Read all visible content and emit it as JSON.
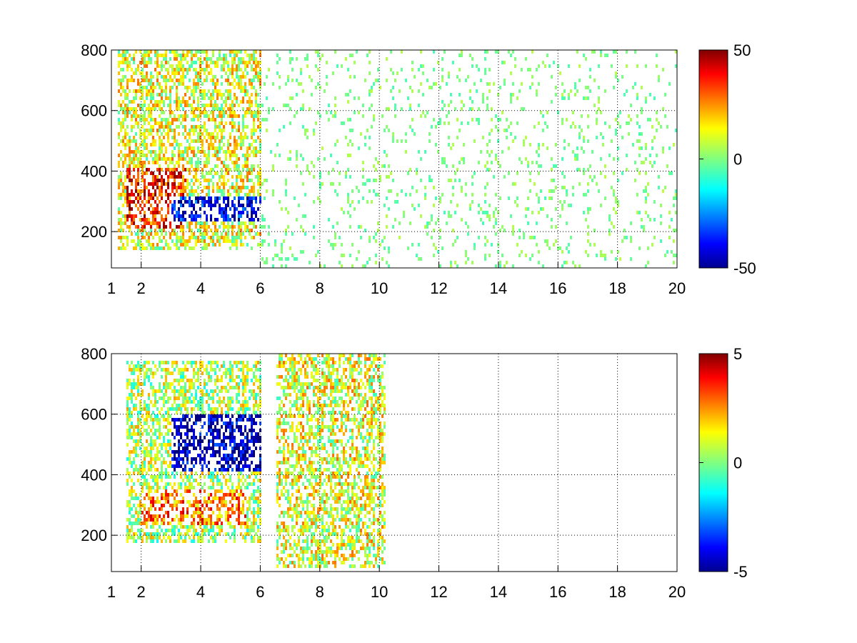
{
  "chart_data": [
    {
      "type": "heatmap",
      "title": "",
      "xlabel": "",
      "ylabel": "",
      "xlim": [
        1,
        20
      ],
      "ylim": [
        80,
        800
      ],
      "xticks": [
        1,
        2,
        4,
        6,
        8,
        10,
        12,
        14,
        16,
        18,
        20
      ],
      "xtick_labels": [
        "1",
        "2",
        "4",
        "6",
        "8",
        "10",
        "12",
        "14",
        "16",
        "18",
        "20"
      ],
      "yticks": [
        200,
        400,
        600,
        800
      ],
      "ytick_labels": [
        "200",
        "400",
        "600",
        "800"
      ],
      "grid": true,
      "colormap": "jet",
      "colorbar": {
        "range": [
          -50,
          50
        ],
        "ticks": [
          50,
          0,
          -50
        ],
        "tick_labels": [
          "50",
          "0",
          "-50"
        ]
      },
      "features": [
        {
          "description": "dense noisy region",
          "x_range": [
            1.2,
            6.0
          ],
          "y_range": [
            150,
            800
          ],
          "typical_value": 10
        },
        {
          "description": "positive band",
          "x_range": [
            1.5,
            3.5
          ],
          "y_range": [
            220,
            420
          ],
          "typical_value": 35
        },
        {
          "description": "negative band",
          "x_range": [
            3.0,
            6.0
          ],
          "y_range": [
            240,
            320
          ],
          "typical_value": -40
        },
        {
          "description": "sparse near-zero columns",
          "x_range": [
            6.0,
            20.0
          ],
          "y_range": [
            80,
            800
          ],
          "typical_value": 0
        }
      ]
    },
    {
      "type": "heatmap",
      "title": "",
      "xlabel": "",
      "ylabel": "",
      "xlim": [
        1,
        20
      ],
      "ylim": [
        80,
        800
      ],
      "xticks": [
        1,
        2,
        4,
        6,
        8,
        10,
        12,
        14,
        16,
        18,
        20
      ],
      "xtick_labels": [
        "1",
        "2",
        "4",
        "6",
        "8",
        "10",
        "12",
        "14",
        "16",
        "18",
        "20"
      ],
      "yticks": [
        200,
        400,
        600,
        800
      ],
      "ytick_labels": [
        "200",
        "400",
        "600",
        "800"
      ],
      "grid": true,
      "colormap": "jet",
      "colorbar": {
        "range": [
          -5,
          5
        ],
        "ticks": [
          5,
          0,
          -5
        ],
        "tick_labels": [
          "5",
          "0",
          "-5"
        ]
      },
      "features": [
        {
          "description": "main cluster",
          "x_range": [
            1.5,
            6.0
          ],
          "y_range": [
            180,
            780
          ],
          "typical_value": 0.5
        },
        {
          "description": "negative patch",
          "x_range": [
            3.0,
            6.0
          ],
          "y_range": [
            420,
            600
          ],
          "typical_value": -4.5
        },
        {
          "description": "positive streaks",
          "x_range": [
            2.0,
            5.5
          ],
          "y_range": [
            240,
            360
          ],
          "typical_value": 2.5
        },
        {
          "description": "isolated columns",
          "x_range": [
            6.5,
            10.2
          ],
          "y_range": [
            100,
            800
          ],
          "typical_value": 1
        }
      ]
    }
  ]
}
